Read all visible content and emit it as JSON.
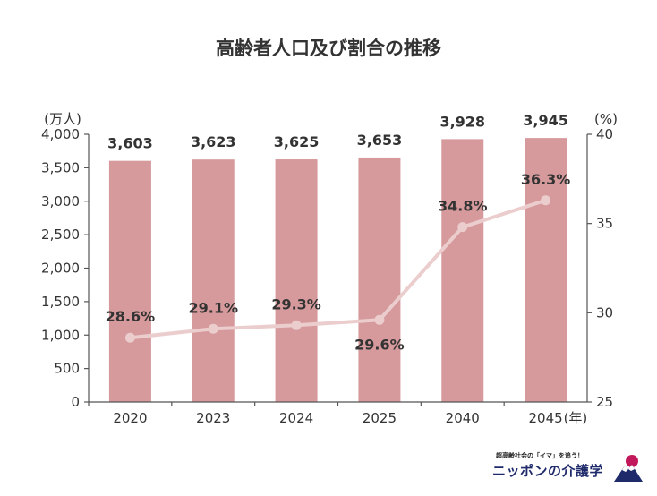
{
  "chart_data": {
    "type": "bar+line",
    "title": "高齢者人口及び割合の推移",
    "categories": [
      "2020",
      "2023",
      "2024",
      "2025",
      "2040",
      "2045"
    ],
    "x_unit": "(年)",
    "series": [
      {
        "type": "bar",
        "axis": "left",
        "values": [
          3603,
          3623,
          3625,
          3653,
          3928,
          3945
        ],
        "labels": [
          "3,603",
          "3,623",
          "3,625",
          "3,653",
          "3,928",
          "3,945"
        ],
        "color": "#d69a9c"
      },
      {
        "type": "line",
        "axis": "right",
        "values": [
          28.6,
          29.1,
          29.3,
          29.6,
          34.8,
          36.3
        ],
        "labels": [
          "28.6%",
          "29.1%",
          "29.3%",
          "29.6%",
          "34.8%",
          "36.3%"
        ],
        "color": "#ebcdcd"
      }
    ],
    "y_left": {
      "unit": "(万人)",
      "range": [
        0,
        4000
      ],
      "ticks": [
        0,
        500,
        1000,
        1500,
        2000,
        2500,
        3000,
        3500,
        4000
      ],
      "tick_labels": [
        "0",
        "500",
        "1,000",
        "1,500",
        "2,000",
        "2,500",
        "3,000",
        "3,500",
        "4,000"
      ]
    },
    "y_right": {
      "unit": "(%)",
      "range": [
        25,
        40
      ],
      "ticks": [
        25,
        30,
        35,
        40
      ],
      "tick_labels": [
        "25",
        "30",
        "35",
        "40"
      ]
    },
    "grid": false
  },
  "logo": {
    "tagline": "超高齢社会の「イマ」を追う！",
    "name": "ニッポンの介護学",
    "icon": "mount-fuji-sun-icon",
    "sun_color": "#c0185a",
    "mountain_color": "#1f2a6b"
  }
}
